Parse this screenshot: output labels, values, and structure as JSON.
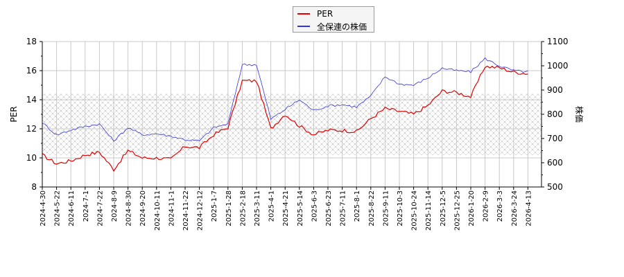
{
  "chart_data": {
    "type": "line",
    "title": "",
    "xlabel": "",
    "ylabel": "PER",
    "y2label": "株価",
    "ylim": [
      8,
      18
    ],
    "y2lim": [
      500,
      1100
    ],
    "yticks": [
      8,
      10,
      12,
      14,
      16,
      18
    ],
    "y2ticks": [
      500,
      600,
      700,
      800,
      900,
      1000,
      1100
    ],
    "grid": true,
    "legend_position": "top-center",
    "shaded_band": {
      "axis": "PER",
      "from": 10.2,
      "to": 14.4,
      "pattern": "crosshatch"
    },
    "categories": [
      "2024-4-30",
      "2024-5-22",
      "2024-6-11",
      "2024-7-1",
      "2024-7-22",
      "2024-8-9",
      "2024-8-30",
      "2024-9-20",
      "2024-10-11",
      "2024-11-1",
      "2024-11-22",
      "2024-12-12",
      "2025-1-7",
      "2025-1-28",
      "2025-2-18",
      "2025-3-11",
      "2025-4-1",
      "2025-4-21",
      "2025-5-14",
      "2025-6-3",
      "2025-6-23",
      "2025-7-11",
      "2025-8-1",
      "2025-8-22",
      "2025-9-11",
      "2025-10-3",
      "2025-10-24",
      "2025-11-14",
      "2025-12-5",
      "2025-12-25",
      "2026-1-20",
      "2026-2-9",
      "2026-3-3",
      "2026-3-24",
      "2026-4-13"
    ],
    "series": [
      {
        "name": "PER",
        "axis": "left",
        "color": "#e00000",
        "values": [
          10.2,
          9.6,
          9.8,
          10.2,
          10.4,
          9.2,
          10.5,
          10.0,
          10.0,
          9.9,
          10.8,
          10.7,
          11.6,
          12.1,
          15.3,
          15.3,
          12.0,
          13.0,
          12.2,
          11.6,
          11.9,
          11.9,
          11.8,
          12.7,
          13.4,
          13.2,
          13.0,
          13.6,
          14.6,
          14.5,
          14.2,
          16.3,
          16.2,
          15.9,
          15.8
        ]
      },
      {
        "name": "全保連の株価",
        "axis": "right",
        "color": "#3333dd",
        "values": [
          765,
          715,
          735,
          750,
          760,
          690,
          745,
          715,
          720,
          710,
          695,
          690,
          745,
          760,
          1005,
          1005,
          780,
          820,
          860,
          815,
          835,
          840,
          830,
          875,
          955,
          925,
          920,
          950,
          990,
          980,
          975,
          1030,
          1000,
          980,
          975
        ]
      }
    ]
  },
  "legend": {
    "items": [
      {
        "label": "PER",
        "color": "#e00000"
      },
      {
        "label": "全保連の株価",
        "color": "#3333dd"
      }
    ]
  },
  "axes": {
    "left_label": "PER",
    "right_label": "株価",
    "left_ticks": [
      "8",
      "10",
      "12",
      "14",
      "16",
      "18"
    ],
    "right_ticks": [
      "500",
      "600",
      "700",
      "800",
      "900",
      "1000",
      "1100"
    ]
  }
}
